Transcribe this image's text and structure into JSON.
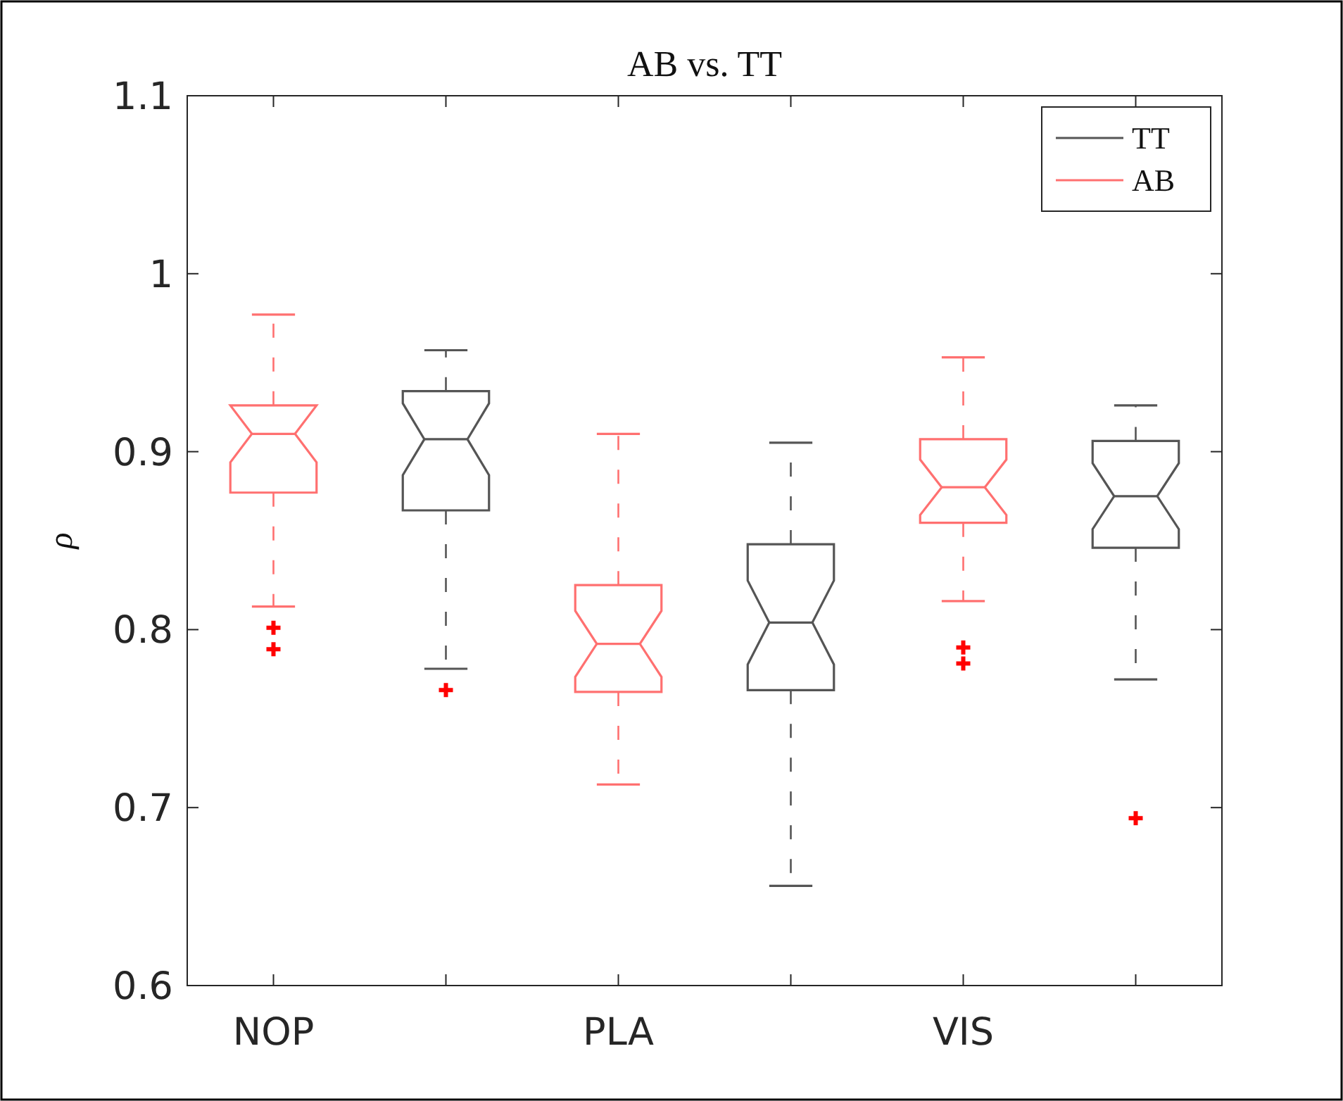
{
  "chart_data": {
    "type": "box",
    "title": "AB vs. TT",
    "ylabel": "ρ",
    "categories": [
      "NOP",
      null,
      "PLA",
      null,
      "VIS",
      null
    ],
    "ylim": [
      0.6,
      1.1
    ],
    "yticks": [
      0.6,
      0.7,
      0.8,
      0.9,
      1,
      1.1
    ],
    "legend": "top right",
    "grid": false,
    "series": [
      {
        "name": "TT",
        "color": "#555555",
        "boxes": [
          null,
          {
            "low": 0.778,
            "q1": 0.867,
            "median": 0.907,
            "q3": 0.934,
            "high": 0.957,
            "outliers": [
              0.766
            ]
          },
          null,
          {
            "low": 0.656,
            "q1": 0.766,
            "median": 0.804,
            "q3": 0.848,
            "high": 0.905
          },
          null,
          {
            "low": 0.772,
            "q1": 0.846,
            "median": 0.875,
            "q3": 0.906,
            "high": 0.926,
            "outliers": [
              0.694
            ]
          }
        ]
      },
      {
        "name": "AB",
        "color": "#ff7070",
        "boxes": [
          {
            "low": 0.813,
            "q1": 0.877,
            "median": 0.91,
            "q3": 0.926,
            "high": 0.977,
            "outliers": [
              0.801,
              0.789
            ]
          },
          null,
          {
            "low": 0.713,
            "q1": 0.765,
            "median": 0.792,
            "q3": 0.825,
            "high": 0.91
          },
          null,
          {
            "low": 0.816,
            "q1": 0.86,
            "median": 0.88,
            "q3": 0.907,
            "high": 0.953,
            "outliers": [
              0.79,
              0.781
            ]
          },
          null
        ]
      }
    ]
  }
}
